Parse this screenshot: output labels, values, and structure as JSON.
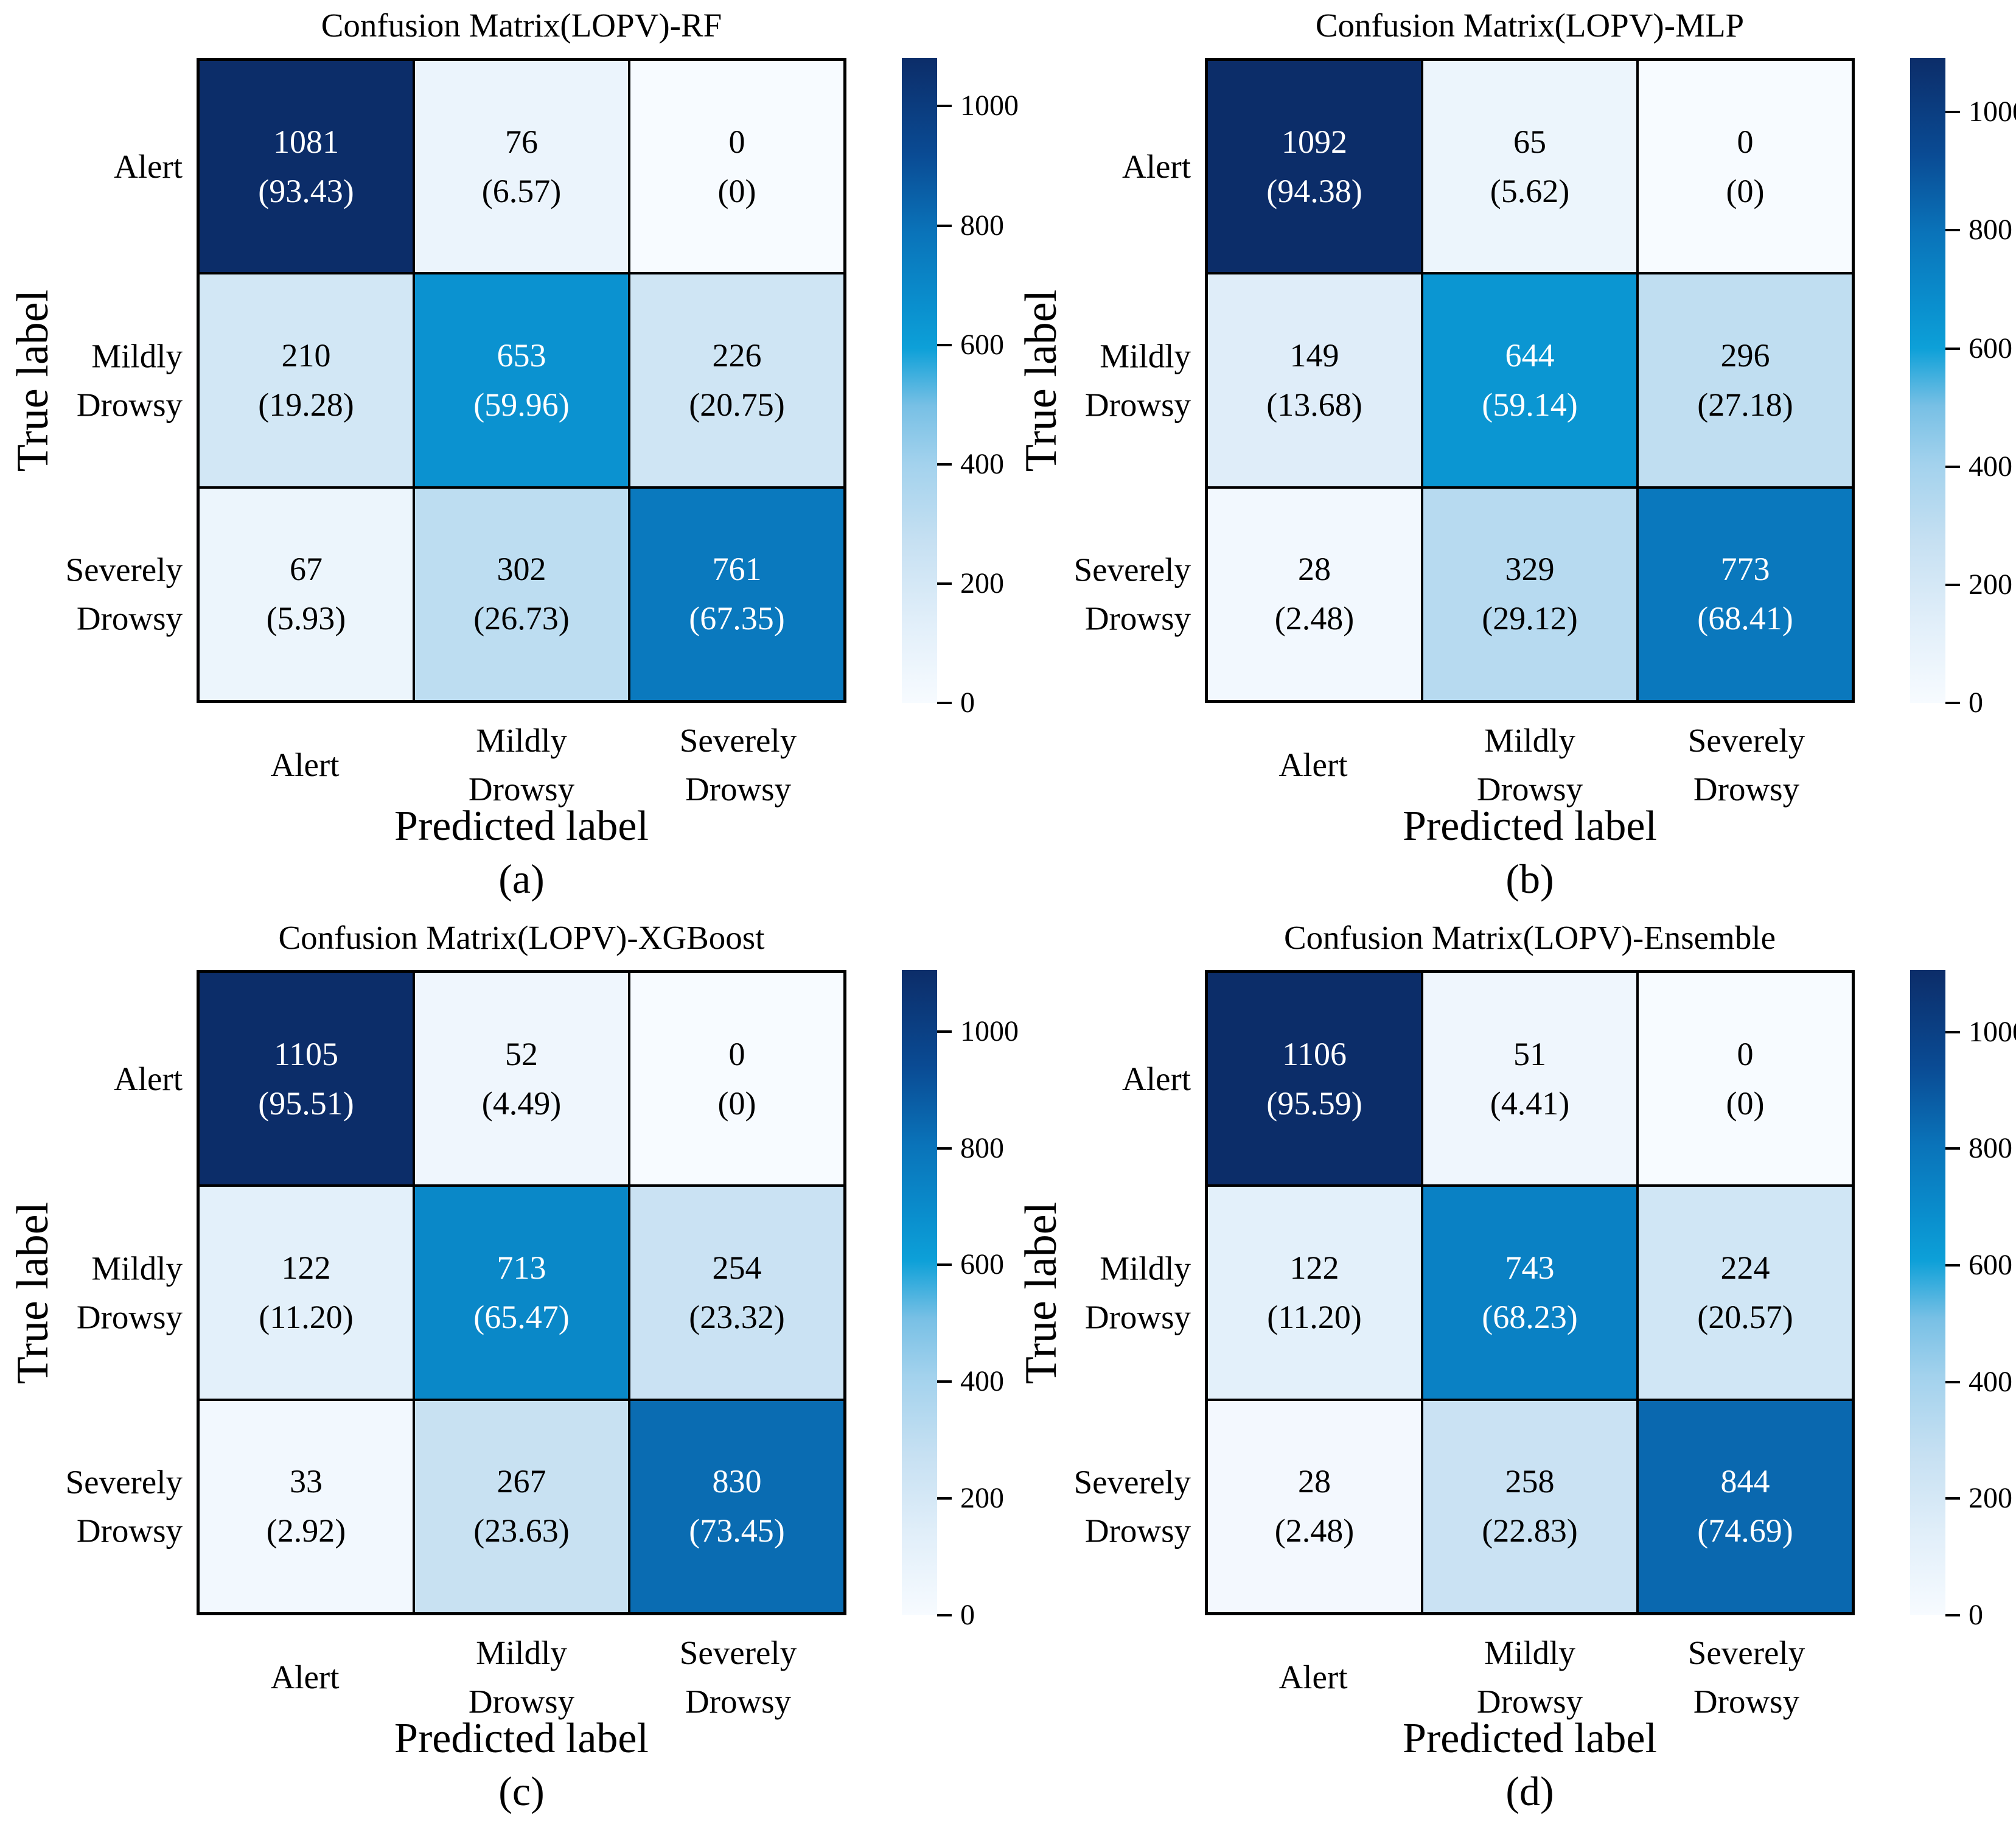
{
  "figure": {
    "xlabel": "Predicted label",
    "ylabel": "True label",
    "class_labels": [
      [
        "Alert"
      ],
      [
        "Mildly",
        "Drowsy"
      ],
      [
        "Severely",
        "Drowsy"
      ]
    ],
    "colorbar_ticks": [
      "0",
      "200",
      "400",
      "600",
      "800",
      "1000"
    ],
    "colorbar_tick_values": [
      0,
      200,
      400,
      600,
      800,
      1000
    ]
  },
  "colors": {
    "background": "#ffffff",
    "text": "#000000",
    "cell_text_dark": "#000000",
    "cell_text_light": "#ffffff",
    "grid_line": "#000000",
    "colormap_stops": [
      {
        "t": 0.0,
        "rgb": [
          247,
          251,
          255
        ]
      },
      {
        "t": 0.13,
        "rgb": [
          224,
          238,
          249
        ]
      },
      {
        "t": 0.25,
        "rgb": [
          198,
          224,
          242
        ]
      },
      {
        "t": 0.37,
        "rgb": [
          163,
          210,
          237
        ]
      },
      {
        "t": 0.46,
        "rgb": [
          120,
          192,
          229
        ]
      },
      {
        "t": 0.55,
        "rgb": [
          13,
          160,
          216
        ]
      },
      {
        "t": 0.62,
        "rgb": [
          10,
          142,
          205
        ]
      },
      {
        "t": 0.73,
        "rgb": [
          10,
          115,
          185
        ]
      },
      {
        "t": 0.85,
        "rgb": [
          10,
          75,
          148
        ]
      },
      {
        "t": 1.0,
        "rgb": [
          12,
          45,
          105
        ]
      }
    ]
  },
  "chart_data": [
    {
      "type": "heatmap",
      "caption": "(a)",
      "title": "Confusion Matrix(LOPV)-RF",
      "row_categories": [
        "Alert",
        "Mildly Drowsy",
        "Severely Drowsy"
      ],
      "col_categories": [
        "Alert",
        "Mildly Drowsy",
        "Severely Drowsy"
      ],
      "values": [
        [
          1081,
          76,
          0
        ],
        [
          210,
          653,
          226
        ],
        [
          67,
          302,
          761
        ]
      ],
      "percent_labels": [
        [
          "(93.43)",
          "(6.57)",
          "(0)"
        ],
        [
          "(19.28)",
          "(59.96)",
          "(20.75)"
        ],
        [
          "(5.93)",
          "(26.73)",
          "(67.35)"
        ]
      ],
      "colorbar_range": [
        0,
        1081
      ]
    },
    {
      "type": "heatmap",
      "caption": "(b)",
      "title": "Confusion Matrix(LOPV)-MLP",
      "row_categories": [
        "Alert",
        "Mildly Drowsy",
        "Severely Drowsy"
      ],
      "col_categories": [
        "Alert",
        "Mildly Drowsy",
        "Severely Drowsy"
      ],
      "values": [
        [
          1092,
          65,
          0
        ],
        [
          149,
          644,
          296
        ],
        [
          28,
          329,
          773
        ]
      ],
      "percent_labels": [
        [
          "(94.38)",
          "(5.62)",
          "(0)"
        ],
        [
          "(13.68)",
          "(59.14)",
          "(27.18)"
        ],
        [
          "(2.48)",
          "(29.12)",
          "(68.41)"
        ]
      ],
      "colorbar_range": [
        0,
        1092
      ]
    },
    {
      "type": "heatmap",
      "caption": "(c)",
      "title": "Confusion Matrix(LOPV)-XGBoost",
      "row_categories": [
        "Alert",
        "Mildly Drowsy",
        "Severely Drowsy"
      ],
      "col_categories": [
        "Alert",
        "Mildly Drowsy",
        "Severely Drowsy"
      ],
      "values": [
        [
          1105,
          52,
          0
        ],
        [
          122,
          713,
          254
        ],
        [
          33,
          267,
          830
        ]
      ],
      "percent_labels": [
        [
          "(95.51)",
          "(4.49)",
          "(0)"
        ],
        [
          "(11.20)",
          "(65.47)",
          "(23.32)"
        ],
        [
          "(2.92)",
          "(23.63)",
          "(73.45)"
        ]
      ],
      "colorbar_range": [
        0,
        1105
      ]
    },
    {
      "type": "heatmap",
      "caption": "(d)",
      "title": "Confusion Matrix(LOPV)-Ensemble",
      "row_categories": [
        "Alert",
        "Mildly Drowsy",
        "Severely Drowsy"
      ],
      "col_categories": [
        "Alert",
        "Mildly Drowsy",
        "Severely Drowsy"
      ],
      "values": [
        [
          1106,
          51,
          0
        ],
        [
          122,
          743,
          224
        ],
        [
          28,
          258,
          844
        ]
      ],
      "percent_labels": [
        [
          "(95.59)",
          "(4.41)",
          "(0)"
        ],
        [
          "(11.20)",
          "(68.23)",
          "(20.57)"
        ],
        [
          "(2.48)",
          "(22.83)",
          "(74.69)"
        ]
      ],
      "colorbar_range": [
        0,
        1106
      ]
    }
  ]
}
